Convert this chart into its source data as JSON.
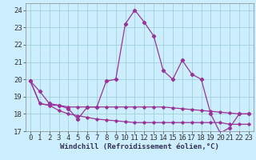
{
  "xlabel": "Windchill (Refroidissement éolien,°C)",
  "bg_color": "#cceeff",
  "line_color": "#993399",
  "grid_color": "#99cccc",
  "x_values": [
    0,
    1,
    2,
    3,
    4,
    5,
    6,
    7,
    8,
    9,
    10,
    11,
    12,
    13,
    14,
    15,
    16,
    17,
    18,
    19,
    20,
    21,
    22,
    23
  ],
  "y_main": [
    19.9,
    19.3,
    18.6,
    18.5,
    18.3,
    17.7,
    18.4,
    18.4,
    19.9,
    20.0,
    23.2,
    24.0,
    23.3,
    22.5,
    20.5,
    20.0,
    21.1,
    20.3,
    20.0,
    18.0,
    16.9,
    17.2,
    18.0,
    18.0
  ],
  "y_line1": [
    19.9,
    18.6,
    18.5,
    18.5,
    18.4,
    18.4,
    18.4,
    18.4,
    18.4,
    18.4,
    18.4,
    18.4,
    18.4,
    18.4,
    18.4,
    18.35,
    18.3,
    18.25,
    18.2,
    18.15,
    18.1,
    18.05,
    18.0,
    18.0
  ],
  "y_line2": [
    19.9,
    18.6,
    18.5,
    18.2,
    18.0,
    17.9,
    17.8,
    17.7,
    17.65,
    17.6,
    17.55,
    17.5,
    17.5,
    17.5,
    17.5,
    17.5,
    17.5,
    17.5,
    17.5,
    17.5,
    17.5,
    17.4,
    17.4,
    17.4
  ],
  "ylim": [
    17.0,
    24.4
  ],
  "yticks": [
    17,
    18,
    19,
    20,
    21,
    22,
    23,
    24
  ],
  "xlim": [
    -0.5,
    23.5
  ],
  "xticks": [
    0,
    1,
    2,
    3,
    4,
    5,
    6,
    7,
    8,
    9,
    10,
    11,
    12,
    13,
    14,
    15,
    16,
    17,
    18,
    19,
    20,
    21,
    22,
    23
  ],
  "tick_fontsize": 6.5,
  "label_fontsize": 6.5
}
